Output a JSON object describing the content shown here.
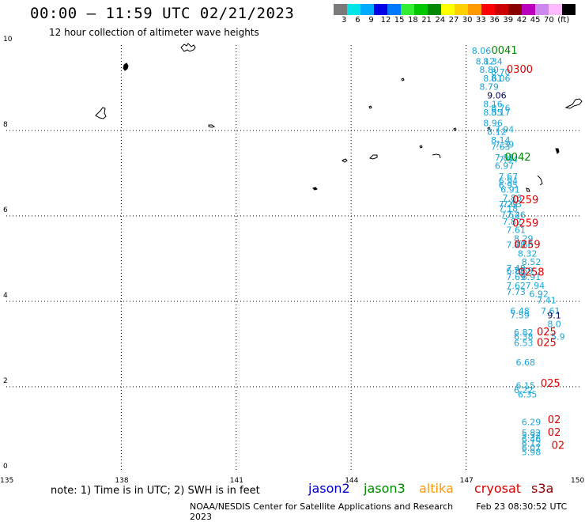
{
  "header": {
    "title": "00:00 – 11:59 UTC 02/21/2023",
    "subtitle": "12 hour collection of altimeter wave heights"
  },
  "colorscale": {
    "colors": [
      "#7a7a7a",
      "#00e6e6",
      "#00aaff",
      "#0000e6",
      "#0078ff",
      "#33ee33",
      "#00c800",
      "#008800",
      "#ffff00",
      "#ffd000",
      "#ff9900",
      "#ff0000",
      "#cc0000",
      "#880000",
      "#bb00bb",
      "#cc88ee",
      "#ffbbff",
      "#000000"
    ],
    "labels": [
      "3",
      "6",
      "9",
      "12",
      "15",
      "18",
      "21",
      "24",
      "27",
      "30",
      "33",
      "36",
      "39",
      "42",
      "45",
      "70",
      "(ft)"
    ]
  },
  "axes": {
    "y_ticks": [
      "10",
      "8",
      "6",
      "4",
      "2",
      "0"
    ],
    "x_ticks": [
      "135",
      "138",
      "141",
      "144",
      "147",
      "150"
    ]
  },
  "map_data": {
    "lon_range": [
      135,
      150
    ],
    "lat_range": [
      0,
      10
    ],
    "obs_cyan": [
      {
        "lon": 147.4,
        "lat": 9.8,
        "v": "8.06"
      },
      {
        "lon": 147.5,
        "lat": 9.55,
        "v": "8.12"
      },
      {
        "lon": 147.7,
        "lat": 9.55,
        "v": "8.34"
      },
      {
        "lon": 147.6,
        "lat": 9.35,
        "v": "8.80"
      },
      {
        "lon": 147.7,
        "lat": 9.15,
        "v": "8.61"
      },
      {
        "lon": 147.9,
        "lat": 9.15,
        "v": "8.06"
      },
      {
        "lon": 147.6,
        "lat": 8.95,
        "v": "8.79"
      },
      {
        "lon": 147.9,
        "lat": 9.3,
        "v": "8.70"
      },
      {
        "lon": 147.7,
        "lat": 8.55,
        "v": "8.16"
      },
      {
        "lon": 147.9,
        "lat": 8.45,
        "v": "8.76"
      },
      {
        "lon": 147.7,
        "lat": 8.35,
        "v": "8.35"
      },
      {
        "lon": 147.9,
        "lat": 8.35,
        "v": "8.17"
      },
      {
        "lon": 147.7,
        "lat": 8.1,
        "v": "8.96"
      },
      {
        "lon": 147.8,
        "lat": 7.9,
        "v": "8.12"
      },
      {
        "lon": 148.0,
        "lat": 7.95,
        "v": "7.94"
      },
      {
        "lon": 147.9,
        "lat": 7.7,
        "v": "8.14"
      },
      {
        "lon": 148.0,
        "lat": 7.6,
        "v": "7.39"
      },
      {
        "lon": 147.9,
        "lat": 7.55,
        "v": "7.63"
      },
      {
        "lon": 148.0,
        "lat": 7.3,
        "v": "7.81"
      },
      {
        "lon": 148.1,
        "lat": 7.25,
        "v": "7.94"
      },
      {
        "lon": 148.0,
        "lat": 7.1,
        "v": "6.97"
      },
      {
        "lon": 148.1,
        "lat": 6.85,
        "v": "7.67"
      },
      {
        "lon": 148.1,
        "lat": 6.75,
        "v": "6.94"
      },
      {
        "lon": 148.1,
        "lat": 6.65,
        "v": "6.95"
      },
      {
        "lon": 148.15,
        "lat": 6.55,
        "v": "6.91"
      },
      {
        "lon": 148.2,
        "lat": 6.35,
        "v": "7.86"
      },
      {
        "lon": 148.1,
        "lat": 6.2,
        "v": "7.29"
      },
      {
        "lon": 148.2,
        "lat": 6.2,
        "v": "7.03"
      },
      {
        "lon": 148.1,
        "lat": 6.1,
        "v": "7.18"
      },
      {
        "lon": 148.15,
        "lat": 5.95,
        "v": "7.52"
      },
      {
        "lon": 148.3,
        "lat": 5.95,
        "v": "7.46"
      },
      {
        "lon": 148.2,
        "lat": 5.8,
        "v": "7.82"
      },
      {
        "lon": 148.3,
        "lat": 5.6,
        "v": "7.61"
      },
      {
        "lon": 148.5,
        "lat": 5.4,
        "v": "8.29"
      },
      {
        "lon": 148.3,
        "lat": 5.25,
        "v": "7.78"
      },
      {
        "lon": 148.5,
        "lat": 5.25,
        "v": "8.66"
      },
      {
        "lon": 148.6,
        "lat": 5.05,
        "v": "8.32"
      },
      {
        "lon": 148.7,
        "lat": 4.85,
        "v": "8.52"
      },
      {
        "lon": 148.3,
        "lat": 4.7,
        "v": "7.48"
      },
      {
        "lon": 148.3,
        "lat": 4.65,
        "v": "6.88"
      },
      {
        "lon": 148.5,
        "lat": 4.65,
        "v": "7.59"
      },
      {
        "lon": 148.3,
        "lat": 4.5,
        "v": "7.69"
      },
      {
        "lon": 148.7,
        "lat": 4.5,
        "v": "6.91"
      },
      {
        "lon": 148.3,
        "lat": 4.3,
        "v": "7.62"
      },
      {
        "lon": 148.8,
        "lat": 4.3,
        "v": "7.94"
      },
      {
        "lon": 148.3,
        "lat": 4.15,
        "v": "7.73"
      },
      {
        "lon": 148.9,
        "lat": 4.1,
        "v": "6.92"
      },
      {
        "lon": 149.1,
        "lat": 3.95,
        "v": "7.41"
      },
      {
        "lon": 148.4,
        "lat": 3.7,
        "v": "6.48"
      },
      {
        "lon": 148.4,
        "lat": 3.6,
        "v": "7.59"
      },
      {
        "lon": 149.2,
        "lat": 3.7,
        "v": "7.61"
      },
      {
        "lon": 149.3,
        "lat": 3.4,
        "v": "8.0"
      },
      {
        "lon": 148.5,
        "lat": 3.2,
        "v": "6.82"
      },
      {
        "lon": 148.5,
        "lat": 3.1,
        "v": "6.38"
      },
      {
        "lon": 149.4,
        "lat": 3.1,
        "v": "5.9"
      },
      {
        "lon": 148.5,
        "lat": 2.95,
        "v": "6.53"
      },
      {
        "lon": 148.55,
        "lat": 2.5,
        "v": "6.68"
      },
      {
        "lon": 148.55,
        "lat": 1.95,
        "v": "6.15"
      },
      {
        "lon": 148.5,
        "lat": 1.85,
        "v": "6.22"
      },
      {
        "lon": 148.6,
        "lat": 1.75,
        "v": "6.35"
      },
      {
        "lon": 148.7,
        "lat": 1.1,
        "v": "6.29"
      },
      {
        "lon": 148.7,
        "lat": 0.85,
        "v": "5.82"
      },
      {
        "lon": 148.7,
        "lat": 0.8,
        "v": "5.32"
      },
      {
        "lon": 148.7,
        "lat": 0.7,
        "v": "6.46"
      },
      {
        "lon": 148.7,
        "lat": 0.6,
        "v": "6.12"
      },
      {
        "lon": 148.7,
        "lat": 0.5,
        "v": "6.07"
      },
      {
        "lon": 148.7,
        "lat": 0.4,
        "v": "5.98"
      }
    ],
    "obs_navy": [
      {
        "lon": 147.8,
        "lat": 8.75,
        "v": "9.06"
      },
      {
        "lon": 149.3,
        "lat": 3.6,
        "v": "9.1"
      }
    ],
    "times_green": [
      {
        "lon": 148.0,
        "lat": 9.8,
        "v": "0041"
      },
      {
        "lon": 148.35,
        "lat": 7.3,
        "v": "0042"
      }
    ],
    "times_red": [
      {
        "lon": 148.4,
        "lat": 9.35,
        "v": "0300"
      },
      {
        "lon": 148.55,
        "lat": 6.3,
        "v": "0259"
      },
      {
        "lon": 148.55,
        "lat": 5.75,
        "v": "0259"
      },
      {
        "lon": 148.6,
        "lat": 5.25,
        "v": "0259"
      },
      {
        "lon": 148.7,
        "lat": 4.6,
        "v": "0258"
      },
      {
        "lon": 149.1,
        "lat": 3.2,
        "v": "025"
      },
      {
        "lon": 149.1,
        "lat": 2.95,
        "v": "025"
      },
      {
        "lon": 149.2,
        "lat": 2.0,
        "v": "025"
      },
      {
        "lon": 149.3,
        "lat": 1.15,
        "v": "02"
      },
      {
        "lon": 149.3,
        "lat": 0.85,
        "v": "02"
      },
      {
        "lon": 149.4,
        "lat": 0.55,
        "v": "02"
      }
    ]
  },
  "footer": {
    "note": "note: 1) Time is in UTC; 2) SWH is in feet",
    "legend": [
      {
        "name": "jason2",
        "color": "#0000cc"
      },
      {
        "name": "jason3",
        "color": "#008800"
      },
      {
        "name": "altika",
        "color": "#ff9900"
      },
      {
        "name": "cryosat",
        "color": "#dd0000"
      },
      {
        "name": "s3a",
        "color": "#880000"
      }
    ],
    "credit": "NOAA/NESDIS Center for Satellite Applications and Research",
    "timestamp": "Feb 23 08:30:52 UTC 2023"
  }
}
